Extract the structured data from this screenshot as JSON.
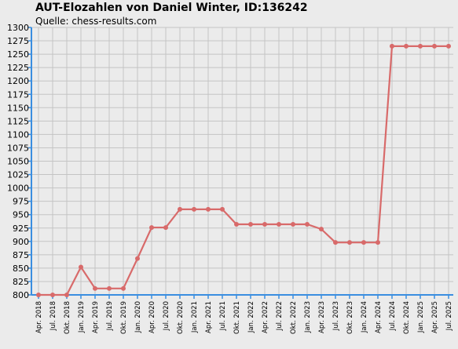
{
  "chart_data": {
    "type": "line",
    "title": "AUT-Elozahlen von Daniel Winter, ID:136242",
    "subtitle": "Quelle: chess-results.com",
    "xlabel": "",
    "ylabel": "",
    "ylim": [
      800,
      1300
    ],
    "ytick_step": 25,
    "grid": true,
    "line_color": "#d86a6a",
    "axis_color": "#3a8ee0",
    "categories": [
      "Apr. 2018",
      "Jul. 2018",
      "Okt. 2018",
      "Jan. 2019",
      "Apr. 2019",
      "Jul. 2019",
      "Okt. 2019",
      "Jan. 2020",
      "Apr. 2020",
      "Jul. 2020",
      "Okt. 2020",
      "Jan. 2021",
      "Apr. 2021",
      "Jul. 2021",
      "Okt. 2021",
      "Jan. 2022",
      "Apr. 2022",
      "Jul. 2022",
      "Okt. 2022",
      "Jan. 2023",
      "Apr. 2023",
      "Jul. 2023",
      "Okt. 2023",
      "Jan. 2024",
      "Apr. 2024",
      "Jul. 2024",
      "Okt. 2024",
      "Jan. 2025",
      "Apr. 2025",
      "Jul. 2025"
    ],
    "values": [
      800,
      800,
      800,
      852,
      812,
      812,
      812,
      868,
      926,
      926,
      960,
      960,
      960,
      960,
      932,
      932,
      932,
      932,
      932,
      932,
      923,
      898,
      898,
      898,
      898,
      1265,
      1265,
      1265,
      1265,
      1265
    ]
  }
}
